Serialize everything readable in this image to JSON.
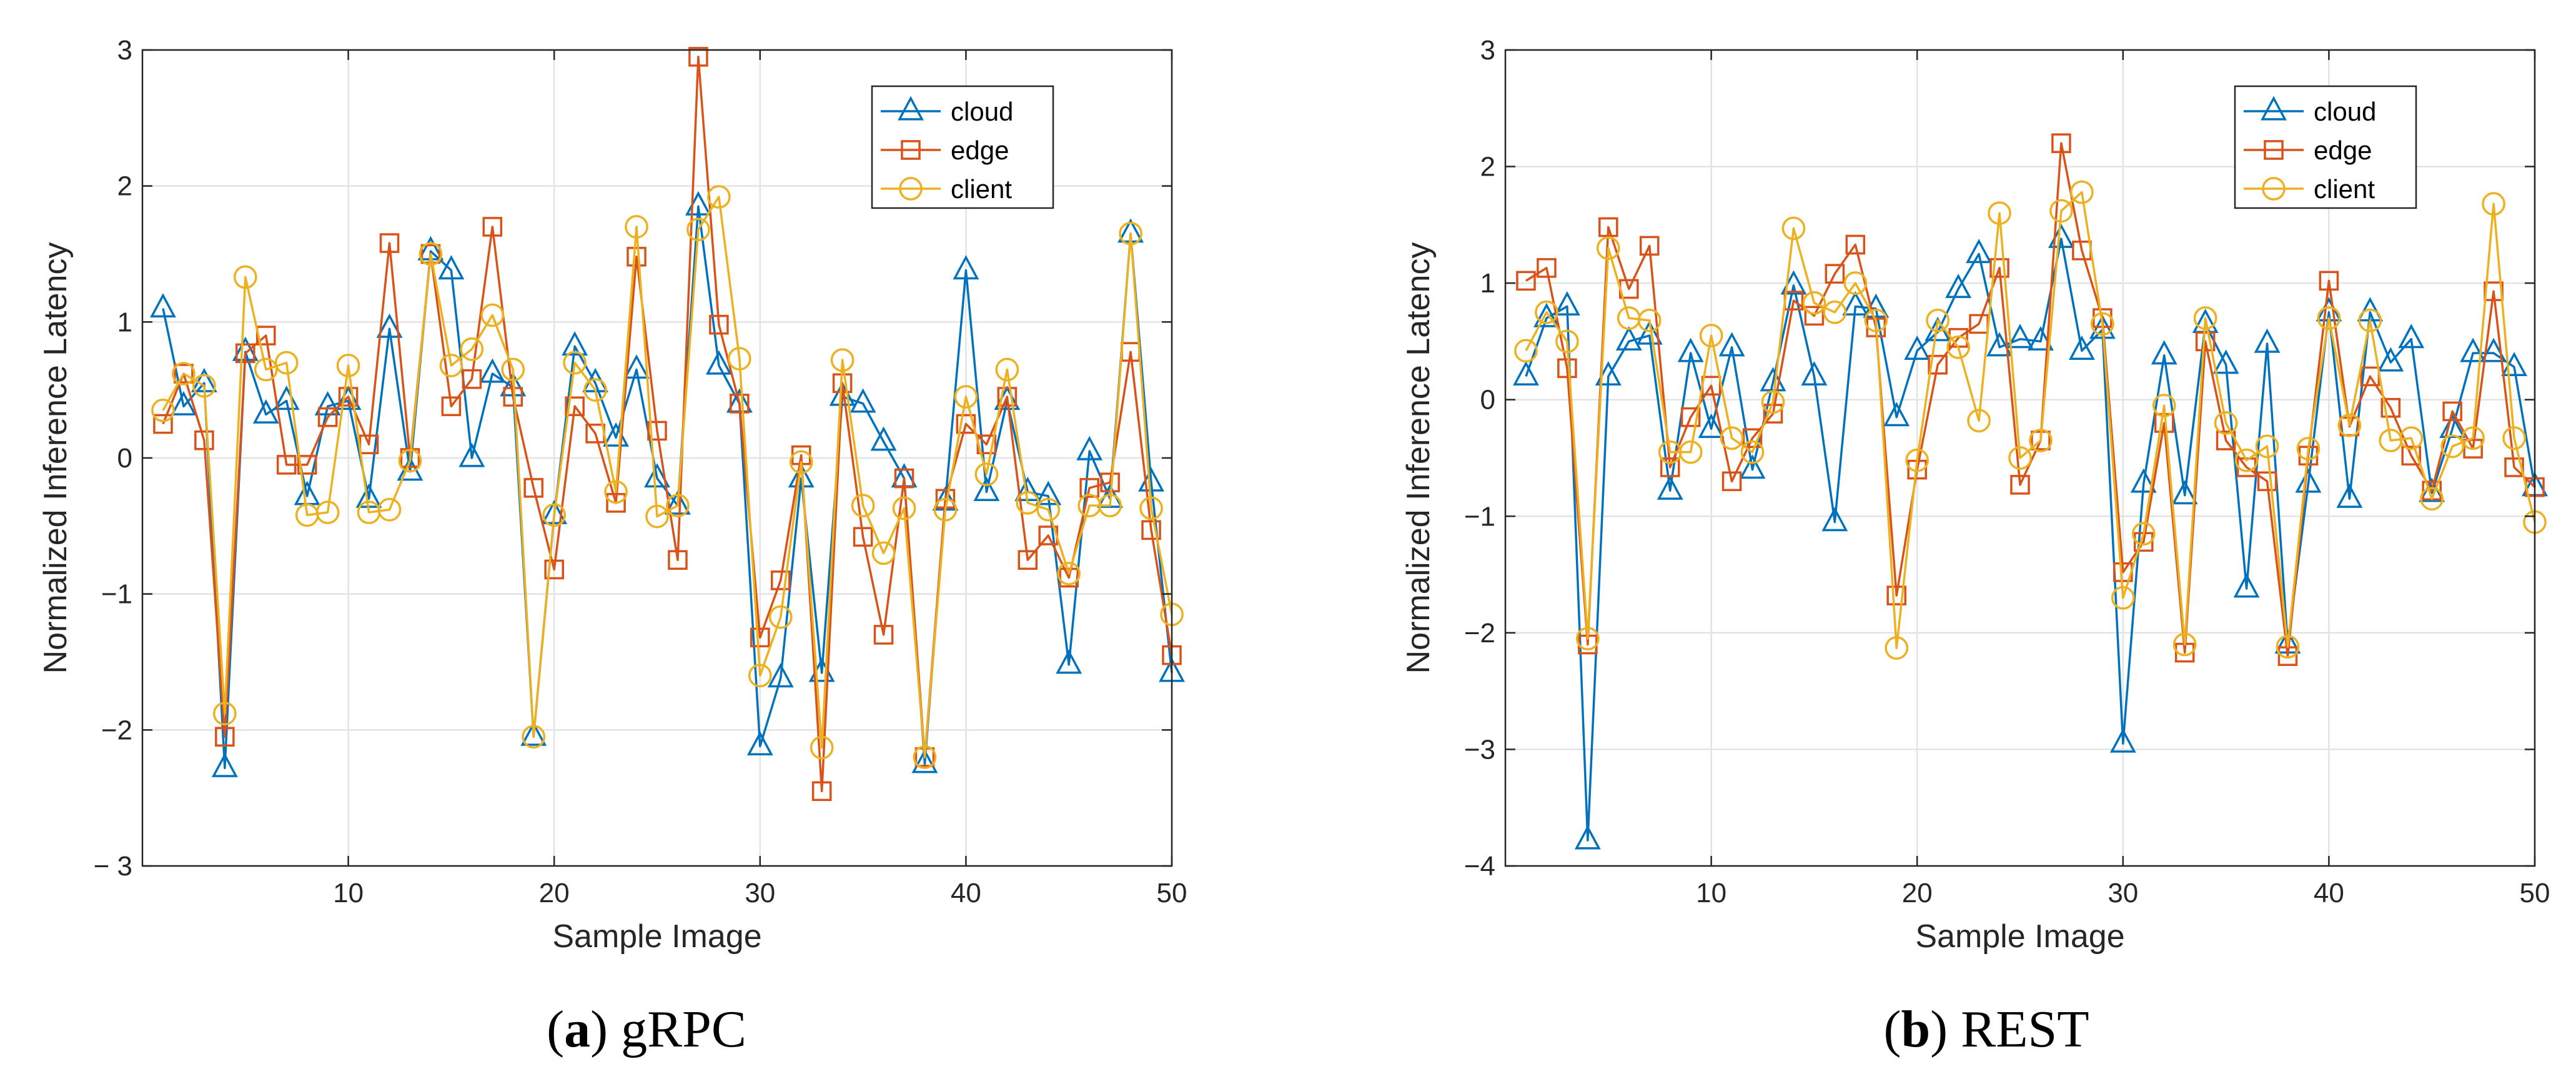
{
  "chart_data": [
    {
      "type": "line",
      "caption_label": "a",
      "caption_text": "gRPC",
      "xlabel": "Sample Image",
      "ylabel": "Normalized Inference Latency",
      "xlim": [
        0,
        50
      ],
      "ylim": [
        -3,
        3
      ],
      "xticks": [
        10,
        20,
        30,
        40,
        50
      ],
      "yticks": [
        -3,
        -2,
        -1,
        0,
        1,
        2,
        3
      ],
      "ytick_labels": [
        "− 3",
        "−2",
        "−1",
        "0",
        "1",
        "2",
        "3"
      ],
      "grid": true,
      "legend_position": "top-right",
      "x": [
        1,
        2,
        3,
        4,
        5,
        6,
        7,
        8,
        9,
        10,
        11,
        12,
        13,
        14,
        15,
        16,
        17,
        18,
        19,
        20,
        21,
        22,
        23,
        24,
        25,
        26,
        27,
        28,
        29,
        30,
        31,
        32,
        33,
        34,
        35,
        36,
        37,
        38,
        39,
        40,
        41,
        42,
        43,
        44,
        45,
        46,
        47,
        48,
        49,
        50
      ],
      "series": [
        {
          "name": "cloud",
          "color": "#0072BD",
          "marker": "triangle",
          "values": [
            1.1,
            0.38,
            0.55,
            -2.28,
            0.78,
            0.32,
            0.42,
            -0.28,
            0.38,
            0.42,
            -0.3,
            0.95,
            -0.1,
            1.52,
            1.38,
            0.0,
            0.62,
            0.52,
            -2.05,
            -0.42,
            0.82,
            0.55,
            0.15,
            0.65,
            -0.15,
            -0.35,
            1.85,
            0.68,
            0.4,
            -2.12,
            -1.62,
            -0.15,
            -1.58,
            0.45,
            0.4,
            0.12,
            -0.15,
            -2.25,
            -0.32,
            1.38,
            -0.25,
            0.42,
            -0.25,
            -0.28,
            -1.52,
            0.05,
            -0.3,
            1.65,
            -0.18,
            -1.58
          ]
        },
        {
          "name": "edge",
          "color": "#D95319",
          "marker": "square",
          "values": [
            0.25,
            0.62,
            0.13,
            -2.05,
            0.77,
            0.9,
            -0.05,
            -0.05,
            0.3,
            0.45,
            0.1,
            1.58,
            0.0,
            1.5,
            0.38,
            0.58,
            1.7,
            0.45,
            -0.22,
            -0.82,
            0.38,
            0.18,
            -0.33,
            1.48,
            0.2,
            -0.75,
            2.95,
            0.98,
            0.4,
            -1.32,
            -0.9,
            0.02,
            -2.45,
            0.55,
            -0.58,
            -1.3,
            -0.15,
            -2.2,
            -0.3,
            0.25,
            0.1,
            0.45,
            -0.75,
            -0.57,
            -0.88,
            -0.22,
            -0.18,
            0.78,
            -0.53,
            -1.45
          ]
        },
        {
          "name": "client",
          "color": "#EDB120",
          "marker": "circle",
          "values": [
            0.35,
            0.62,
            0.53,
            -1.88,
            1.33,
            0.65,
            0.7,
            -0.42,
            -0.4,
            0.68,
            -0.4,
            -0.38,
            -0.02,
            1.5,
            0.68,
            0.8,
            1.05,
            0.65,
            -2.05,
            -0.42,
            0.7,
            0.5,
            -0.25,
            1.7,
            -0.43,
            -0.35,
            1.68,
            1.92,
            0.73,
            -1.6,
            -1.17,
            -0.03,
            -2.13,
            0.72,
            -0.35,
            -0.7,
            -0.37,
            -2.2,
            -0.38,
            0.45,
            -0.12,
            0.65,
            -0.33,
            -0.38,
            -0.85,
            -0.35,
            -0.35,
            1.65,
            -0.37,
            -1.15
          ]
        }
      ]
    },
    {
      "type": "line",
      "caption_label": "b",
      "caption_text": "REST",
      "xlabel": "Sample Image",
      "ylabel": "Normalized Inference Latency",
      "xlim": [
        0,
        50
      ],
      "ylim": [
        -4,
        3
      ],
      "xticks": [
        10,
        20,
        30,
        40,
        50
      ],
      "yticks": [
        -4,
        -3,
        -2,
        -1,
        0,
        1,
        2,
        3
      ],
      "ytick_labels": [
        "−4",
        "−3",
        "−2",
        "−1",
        "0",
        "1",
        "2",
        "3"
      ],
      "grid": true,
      "legend_position": "top-right",
      "x": [
        1,
        2,
        3,
        4,
        5,
        6,
        7,
        8,
        9,
        10,
        11,
        12,
        13,
        14,
        15,
        16,
        17,
        18,
        19,
        20,
        21,
        22,
        23,
        24,
        25,
        26,
        27,
        28,
        29,
        30,
        31,
        32,
        33,
        34,
        35,
        36,
        37,
        38,
        39,
        40,
        41,
        42,
        43,
        44,
        45,
        46,
        47,
        48,
        49,
        50
      ],
      "series": [
        {
          "name": "cloud",
          "color": "#0072BD",
          "marker": "triangle",
          "values": [
            0.2,
            0.7,
            0.8,
            -3.78,
            0.2,
            0.5,
            0.55,
            -0.78,
            0.4,
            -0.25,
            0.45,
            -0.6,
            0.15,
            0.98,
            0.2,
            -1.05,
            0.8,
            0.78,
            -0.15,
            0.42,
            0.58,
            0.95,
            1.25,
            0.45,
            0.52,
            0.5,
            1.38,
            0.42,
            0.6,
            -2.95,
            -0.72,
            0.38,
            -0.82,
            0.65,
            0.3,
            -1.62,
            0.48,
            -2.1,
            -0.72,
            0.75,
            -0.85,
            0.75,
            0.32,
            0.52,
            -0.8,
            -0.25,
            0.4,
            0.4,
            0.28,
            -0.75
          ]
        },
        {
          "name": "edge",
          "color": "#D95319",
          "marker": "square",
          "values": [
            1.02,
            1.13,
            0.27,
            -2.1,
            1.48,
            0.95,
            1.32,
            -0.58,
            -0.15,
            0.12,
            -0.7,
            -0.33,
            -0.12,
            0.85,
            0.72,
            1.08,
            1.33,
            0.62,
            -1.68,
            -0.6,
            0.3,
            0.53,
            0.65,
            1.13,
            -0.73,
            -0.35,
            2.2,
            1.28,
            0.7,
            -1.48,
            -1.22,
            -0.2,
            -2.17,
            0.5,
            -0.35,
            -0.58,
            -0.7,
            -2.2,
            -0.48,
            1.02,
            -0.23,
            0.2,
            -0.07,
            -0.48,
            -0.78,
            -0.1,
            -0.42,
            0.93,
            -0.58,
            -0.75
          ]
        },
        {
          "name": "client",
          "color": "#EDB120",
          "marker": "circle",
          "values": [
            0.42,
            0.75,
            0.5,
            -2.05,
            1.3,
            0.7,
            0.68,
            -0.45,
            -0.45,
            0.55,
            -0.33,
            -0.45,
            -0.02,
            1.47,
            0.83,
            0.75,
            1.0,
            0.68,
            -2.13,
            -0.52,
            0.68,
            0.45,
            -0.18,
            1.6,
            -0.5,
            -0.35,
            1.62,
            1.78,
            0.65,
            -1.7,
            -1.15,
            -0.05,
            -2.1,
            0.7,
            -0.2,
            -0.52,
            -0.4,
            -2.12,
            -0.42,
            0.7,
            -0.22,
            0.68,
            -0.35,
            -0.33,
            -0.85,
            -0.4,
            -0.33,
            1.68,
            -0.33,
            -1.05
          ]
        }
      ]
    }
  ]
}
